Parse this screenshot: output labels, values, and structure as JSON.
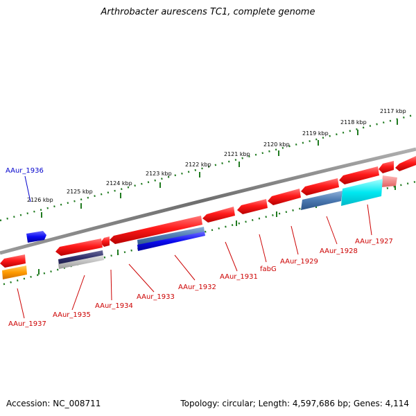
{
  "title": "Arthrobacter aurescens TC1, complete genome",
  "footer": {
    "accession": "Accession: NC_008711",
    "summary": "Topology: circular; Length: 4,597,686 bp; Genes: 4,114"
  },
  "colors": {
    "backbone": "#7f7f7f",
    "scale_ticks": "#1f7a1f",
    "gene_red": "#e01010",
    "label_red": "#cc0000",
    "label_blue": "#0000cc"
  },
  "scale_labels": [
    "2117 kbp",
    "2118 kbp",
    "2119 kbp",
    "2120 kbp",
    "2121 kbp",
    "2122 kbp",
    "2123 kbp",
    "2124 kbp",
    "2125 kbp",
    "2126 kbp"
  ],
  "gene_labels": {
    "AAur_1936": "AAur_1936",
    "AAur_1937": "AAur_1937",
    "AAur_1935": "AAur_1935",
    "AAur_1934": "AAur_1934",
    "AAur_1933": "AAur_1933",
    "AAur_1932": "AAur_1932",
    "AAur_1931": "AAur_1931",
    "fabG": "fabG",
    "AAur_1929": "AAur_1929",
    "AAur_1928": "AAur_1928",
    "AAur_1927": "AAur_1927"
  }
}
